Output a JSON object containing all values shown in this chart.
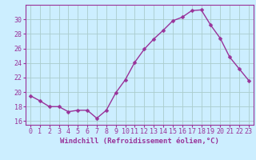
{
  "hours": [
    0,
    1,
    2,
    3,
    4,
    5,
    6,
    7,
    8,
    9,
    10,
    11,
    12,
    13,
    14,
    15,
    16,
    17,
    18,
    19,
    20,
    21,
    22,
    23
  ],
  "values": [
    19.5,
    18.8,
    18.0,
    18.0,
    17.3,
    17.5,
    17.5,
    16.4,
    17.5,
    19.9,
    21.7,
    24.1,
    25.9,
    27.3,
    28.5,
    29.8,
    30.3,
    31.2,
    31.3,
    29.2,
    27.4,
    24.8,
    23.2,
    21.6
  ],
  "line_color": "#993399",
  "marker_color": "#993399",
  "bg_color": "#cceeff",
  "grid_color": "#aacccc",
  "xlabel": "Windchill (Refroidissement éolien,°C)",
  "ylim": [
    15.5,
    32.0
  ],
  "yticks": [
    16,
    18,
    20,
    22,
    24,
    26,
    28,
    30
  ],
  "tick_fontsize": 6.0,
  "xlabel_fontsize": 6.5,
  "line_width": 1.0,
  "marker_size": 2.5
}
